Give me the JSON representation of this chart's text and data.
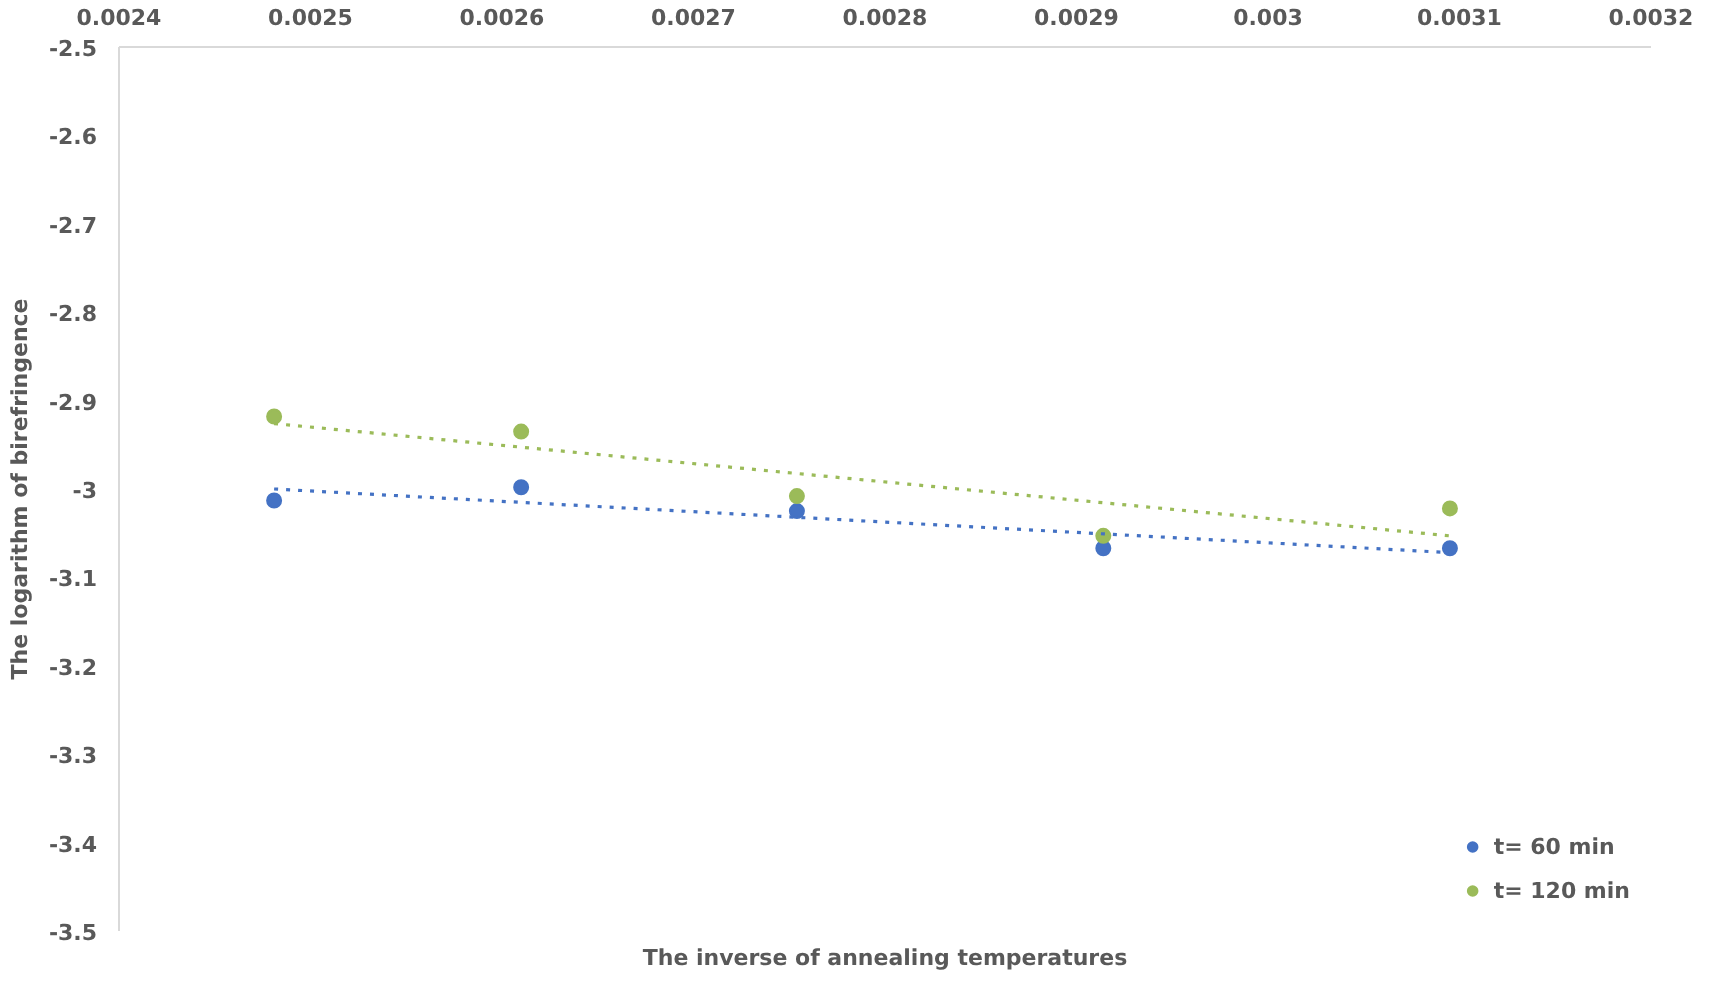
{
  "chart_data": {
    "type": "scatter",
    "xlabel": "The inverse of annealing temperatures",
    "ylabel": "The logarithm of birefringence",
    "xlim": [
      0.0024,
      0.0032
    ],
    "xticks": [
      0.0024,
      0.0025,
      0.0026,
      0.0027,
      0.0028,
      0.0029,
      0.003,
      0.0031,
      0.0032
    ],
    "ylim": [
      -3.5,
      -2.5
    ],
    "yticks": [
      -3.5,
      -3.4,
      -3.3,
      -3.2,
      -3.1,
      -3,
      -2.9,
      -2.8,
      -2.7,
      -2.6,
      -2.5
    ],
    "grid": false,
    "legend": "bottom right",
    "series": [
      {
        "name": "t= 60 min",
        "color": "#4472c4",
        "marker": "circle",
        "x": [
          0.002481,
          0.00261,
          0.002754,
          0.002914,
          0.003095
        ],
        "values": [
          -3.013,
          -2.998,
          -3.025,
          -3.067,
          -3.067
        ]
      },
      {
        "name": "t= 120 min",
        "color": "#9bbb59",
        "marker": "circle",
        "x": [
          0.002481,
          0.00261,
          0.002754,
          0.002914,
          0.003095
        ],
        "values": [
          -2.918,
          -2.935,
          -3.008,
          -3.053,
          -3.022
        ]
      },
      {
        "type": "line",
        "line_style": "dotted",
        "color": "#4472c4",
        "x": [
          0.002481,
          0.003095
        ],
        "values": [
          -3.0,
          -3.072
        ]
      },
      {
        "type": "line",
        "line_style": "dotted",
        "color": "#9bbb59",
        "x": [
          0.002481,
          0.003095
        ],
        "values": [
          -2.926,
          -3.053
        ]
      }
    ]
  }
}
